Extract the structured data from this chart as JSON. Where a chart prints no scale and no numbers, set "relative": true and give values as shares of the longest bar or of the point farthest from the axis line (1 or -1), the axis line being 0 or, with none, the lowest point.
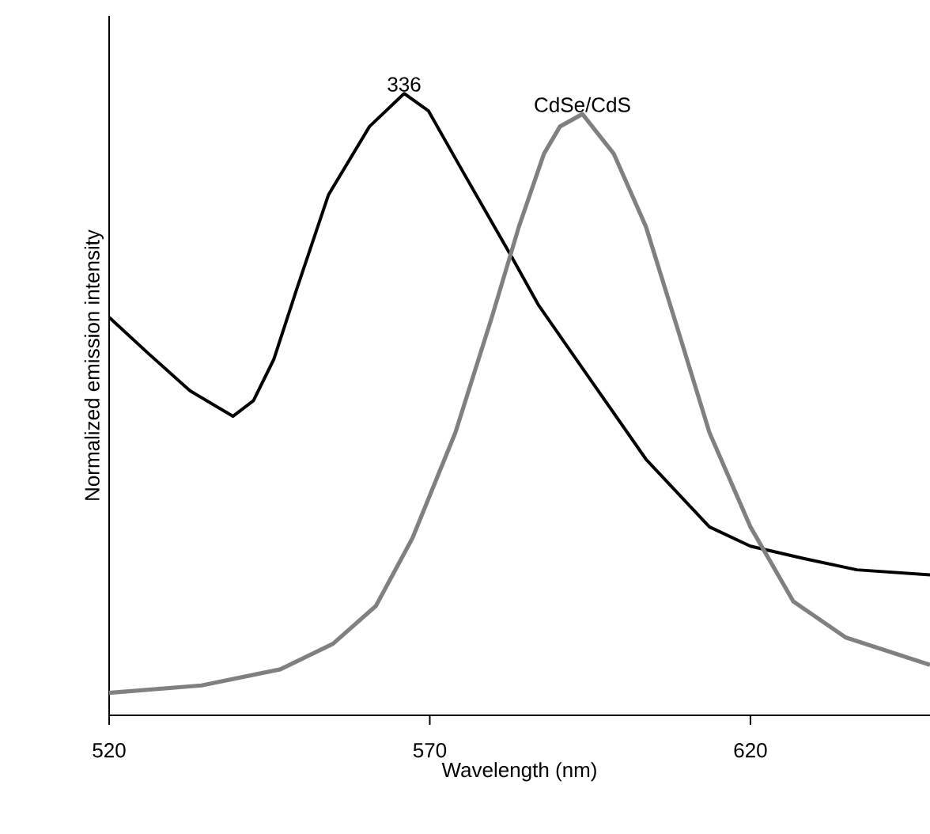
{
  "chart_data": {
    "type": "line",
    "xlabel": "Wavelength (nm)",
    "ylabel": "Normalized emission intensity",
    "relative": true,
    "xlim": [
      520,
      648
    ],
    "xticks": [
      520,
      570,
      620
    ],
    "series": [
      {
        "name": "336",
        "color": "#000000",
        "x": [
          520,
          526,
          532.6,
          539.3,
          542.5,
          545.7,
          549.2,
          554.2,
          560.6,
          566,
          569.8,
          575.4,
          582.9,
          587,
          592,
          603.7,
          613.6,
          620,
          628.4,
          636.6,
          648
        ],
        "values": [
          0.64,
          0.583,
          0.522,
          0.481,
          0.506,
          0.573,
          0.684,
          0.837,
          0.947,
          1.0,
          0.972,
          0.87,
          0.735,
          0.659,
          0.585,
          0.412,
          0.303,
          0.272,
          0.252,
          0.234,
          0.226
        ]
      },
      {
        "name": "CdSe/CdS",
        "color": "#808080",
        "x": [
          520,
          534.4,
          546.7,
          554.9,
          561.6,
          567.3,
          574,
          579.7,
          583.9,
          587.8,
          590.3,
          593.8,
          598.7,
          603.7,
          608.6,
          613.6,
          620,
          626.7,
          634.9,
          648
        ],
        "values": [
          0.036,
          0.048,
          0.074,
          0.115,
          0.176,
          0.285,
          0.455,
          0.641,
          0.786,
          0.903,
          0.947,
          0.967,
          0.903,
          0.786,
          0.623,
          0.455,
          0.303,
          0.183,
          0.125,
          0.081
        ]
      }
    ]
  }
}
